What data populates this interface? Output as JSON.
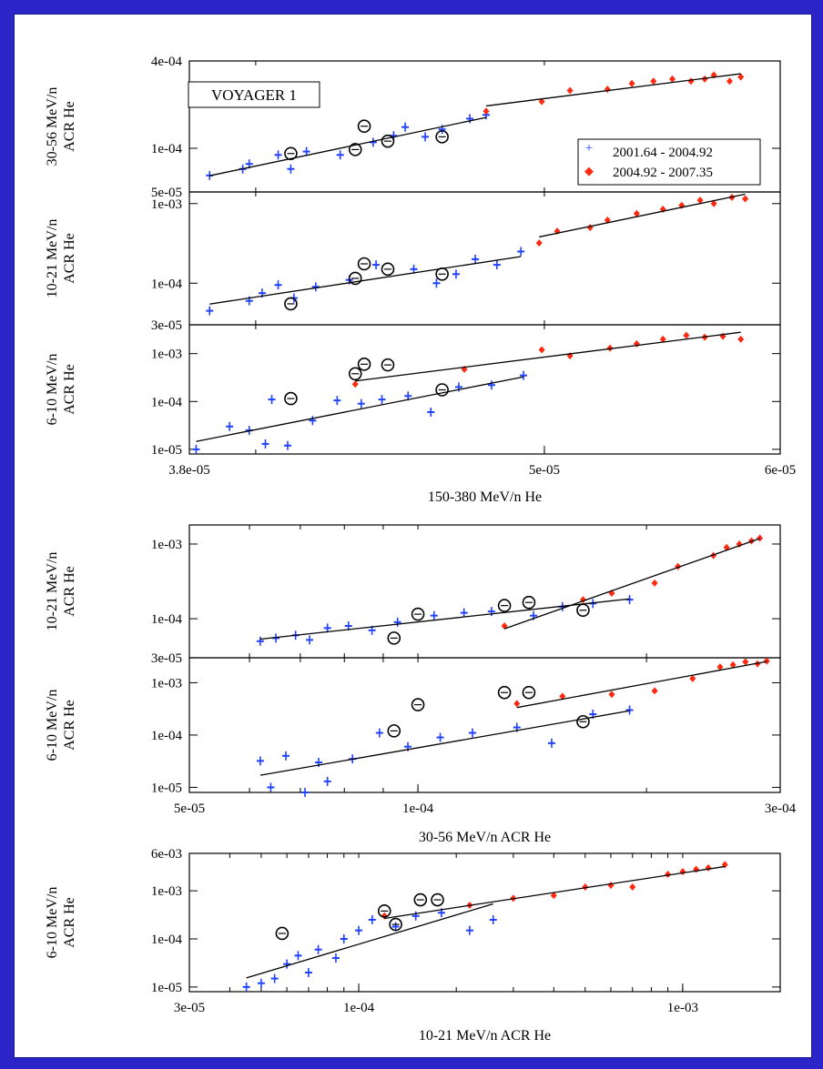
{
  "figure": {
    "label": "VOYAGER 1",
    "legend": [
      {
        "name": "2001.64 - 2004.92",
        "color": "#2040ff",
        "marker": "+"
      },
      {
        "name": "2004.92 - 2007.35",
        "color": "#ff2a10",
        "marker": "◆"
      }
    ],
    "colors": {
      "period1": "#2040ff",
      "period2": "#ff2a10",
      "circle": "#000000",
      "background": "#2b25c8"
    }
  },
  "chart_data": [
    {
      "type": "scatter",
      "xscale": "log",
      "yscale": "log",
      "xlim": [
        3.8e-05,
        6e-05
      ],
      "ylim": [
        5e-05,
        0.0004
      ],
      "xlabel": "",
      "ylabel": "30-56 MeV/n ACR He",
      "yticks": [
        {
          "v": 0.0004,
          "t": "4e-04"
        },
        {
          "v": 0.0001,
          "t": "1e-04"
        },
        {
          "v": 5e-05,
          "t": "5e-05"
        }
      ],
      "series": [
        {
          "name": "2001.64 - 2004.92",
          "color": "#2040ff",
          "x": [
            3.86e-05,
            3.96e-05,
            3.98e-05,
            4.07e-05,
            4.11e-05,
            4.16e-05,
            4.27e-05,
            4.38e-05,
            4.45e-05,
            4.49e-05,
            4.56e-05,
            4.62e-05,
            4.72e-05,
            4.78e-05
          ],
          "y": [
            6.5e-05,
            7.2e-05,
            7.8e-05,
            9e-05,
            7.2e-05,
            9.5e-05,
            9e-05,
            0.00011,
            0.000122,
            0.00014,
            0.00012,
            0.000135,
            0.00016,
            0.00017
          ]
        },
        {
          "name": "2004.92 - 2007.35",
          "color": "#ff2a10",
          "x": [
            4.78e-05,
            4.99e-05,
            5.1e-05,
            5.25e-05,
            5.35e-05,
            5.44e-05,
            5.52e-05,
            5.6e-05,
            5.66e-05,
            5.7e-05,
            5.77e-05,
            5.82e-05
          ],
          "y": [
            0.00018,
            0.00021,
            0.00025,
            0.000255,
            0.00028,
            0.00029,
            0.0003,
            0.00029,
            0.0003,
            0.00032,
            0.00029,
            0.00031
          ]
        },
        {
          "name": "",
          "color": "#000000",
          "x": [
            4.11e-05,
            4.32e-05,
            4.35e-05,
            4.43e-05,
            4.62e-05
          ],
          "y": [
            9.2e-05,
            9.8e-05,
            0.000142,
            0.000112,
            0.00012
          ]
        }
      ]
    },
    {
      "type": "scatter",
      "xscale": "log",
      "yscale": "log",
      "xlim": [
        3.8e-05,
        6e-05
      ],
      "ylim": [
        3e-05,
        0.0014
      ],
      "xlabel": "",
      "ylabel": "10-21 MeV/n ACR He",
      "yticks": [
        {
          "v": 0.001,
          "t": "1e-03"
        },
        {
          "v": 0.0001,
          "t": "1e-04"
        },
        {
          "v": 3e-05,
          "t": "3e-05"
        }
      ],
      "series": [
        {
          "name": "2001.64 - 2004.92",
          "color": "#2040ff",
          "x": [
            3.86e-05,
            3.98e-05,
            4.02e-05,
            4.07e-05,
            4.12e-05,
            4.19e-05,
            4.3e-05,
            4.39e-05,
            4.52e-05,
            4.6e-05,
            4.67e-05,
            4.74e-05,
            4.82e-05,
            4.91e-05
          ],
          "y": [
            4.5e-05,
            6e-05,
            7.5e-05,
            9.5e-05,
            6.5e-05,
            9e-05,
            0.00011,
            0.00017,
            0.00015,
            0.0001,
            0.00013,
            0.0002,
            0.00017,
            0.00025
          ]
        },
        {
          "name": "2004.92 - 2007.35",
          "color": "#ff2a10",
          "x": [
            4.98e-05,
            5.05e-05,
            5.18e-05,
            5.25e-05,
            5.37e-05,
            5.48e-05,
            5.56e-05,
            5.64e-05,
            5.7e-05,
            5.78e-05,
            5.84e-05
          ],
          "y": [
            0.00032,
            0.00045,
            0.0005,
            0.00062,
            0.00075,
            0.00085,
            0.00095,
            0.0011,
            0.001,
            0.0012,
            0.00115
          ]
        },
        {
          "name": "",
          "color": "#000000",
          "x": [
            4.11e-05,
            4.32e-05,
            4.35e-05,
            4.43e-05,
            4.62e-05
          ],
          "y": [
            5.5e-05,
            0.000115,
            0.000175,
            0.00015,
            0.00013
          ]
        }
      ]
    },
    {
      "type": "scatter",
      "xscale": "log",
      "yscale": "log",
      "xlim": [
        3.8e-05,
        6e-05
      ],
      "ylim": [
        8e-06,
        0.004
      ],
      "xlabel": "150-380 MeV/n He",
      "ylabel": "6-10 MeV/n ACR He",
      "xticks": [
        {
          "v": 3.8e-05,
          "t": "3.8e-05"
        },
        {
          "v": 5e-05,
          "t": "5e-05"
        },
        {
          "v": 6e-05,
          "t": "6e-05"
        }
      ],
      "yticks": [
        {
          "v": 0.001,
          "t": "1e-03"
        },
        {
          "v": 0.0001,
          "t": "1e-04"
        },
        {
          "v": 1e-05,
          "t": "1e-05"
        }
      ],
      "series": [
        {
          "name": "2001.64 - 2004.92",
          "color": "#2040ff",
          "x": [
            3.82e-05,
            3.92e-05,
            3.98e-05,
            4.03e-05,
            4.05e-05,
            4.1e-05,
            4.18e-05,
            4.26e-05,
            4.34e-05,
            4.41e-05,
            4.5e-05,
            4.58e-05,
            4.68e-05,
            4.8e-05,
            4.92e-05
          ],
          "y": [
            1e-05,
            3e-05,
            2.5e-05,
            1.3e-05,
            0.00011,
            1.2e-05,
            4e-05,
            0.000105,
            9e-05,
            0.00011,
            0.00013,
            6e-05,
            0.0002,
            0.00022,
            0.00035
          ]
        },
        {
          "name": "2004.92 - 2007.35",
          "color": "#ff2a10",
          "x": [
            4.32e-05,
            4.7e-05,
            4.99e-05,
            5.1e-05,
            5.26e-05,
            5.37e-05,
            5.48e-05,
            5.58e-05,
            5.66e-05,
            5.74e-05,
            5.82e-05
          ],
          "y": [
            0.00023,
            0.00047,
            0.0012,
            0.0009,
            0.0013,
            0.0016,
            0.002,
            0.0024,
            0.0022,
            0.0023,
            0.002
          ]
        },
        {
          "name": "",
          "color": "#000000",
          "x": [
            4.11e-05,
            4.32e-05,
            4.35e-05,
            4.43e-05,
            4.62e-05
          ],
          "y": [
            0.000115,
            0.00038,
            0.0006,
            0.00058,
            0.000175
          ]
        }
      ]
    },
    {
      "type": "scatter",
      "xscale": "log",
      "yscale": "log",
      "xlim": [
        5e-05,
        0.0003
      ],
      "ylim": [
        3e-05,
        0.0018
      ],
      "xlabel": "",
      "ylabel": "10-21 MeV/n ACR He",
      "yticks": [
        {
          "v": 0.001,
          "t": "1e-03"
        },
        {
          "v": 0.0001,
          "t": "1e-04"
        },
        {
          "v": 3e-05,
          "t": "3e-05"
        }
      ],
      "series": [
        {
          "name": "2001.64 - 2004.92",
          "color": "#2040ff",
          "x": [
            6.2e-05,
            6.5e-05,
            6.9e-05,
            7.2e-05,
            7.6e-05,
            8.1e-05,
            8.7e-05,
            9.4e-05,
            0.000105,
            0.000115,
            0.000125,
            0.000142,
            0.000155,
            0.00017,
            0.00019
          ],
          "y": [
            5e-05,
            5.5e-05,
            6e-05,
            5.2e-05,
            7.5e-05,
            8e-05,
            7e-05,
            9e-05,
            0.00011,
            0.00012,
            0.000125,
            0.00011,
            0.000145,
            0.00016,
            0.00018
          ]
        },
        {
          "name": "2004.92 - 2007.35",
          "color": "#ff2a10",
          "x": [
            0.00013,
            0.000165,
            0.00018,
            0.000205,
            0.00022,
            0.000245,
            0.000255,
            0.000265,
            0.000275,
            0.000282
          ],
          "y": [
            8e-05,
            0.00018,
            0.00022,
            0.0003,
            0.0005,
            0.0007,
            0.0009,
            0.001,
            0.0011,
            0.0012
          ]
        },
        {
          "name": "",
          "color": "#000000",
          "x": [
            9.3e-05,
            0.0001,
            0.00013,
            0.00014,
            0.000165
          ],
          "y": [
            5.5e-05,
            0.000115,
            0.00015,
            0.000165,
            0.00013
          ]
        }
      ]
    },
    {
      "type": "scatter",
      "xscale": "log",
      "yscale": "log",
      "xlim": [
        5e-05,
        0.0003
      ],
      "ylim": [
        8e-06,
        0.003
      ],
      "xlabel": "30-56 MeV/n ACR He",
      "ylabel": "6-10 MeV/n ACR He",
      "xticks": [
        {
          "v": 5e-05,
          "t": "5e-05"
        },
        {
          "v": 0.0001,
          "t": "1e-04"
        },
        {
          "v": 0.0003,
          "t": "3e-04"
        }
      ],
      "yticks": [
        {
          "v": 0.001,
          "t": "1e-03"
        },
        {
          "v": 0.0001,
          "t": "1e-04"
        },
        {
          "v": 1e-05,
          "t": "1e-05"
        }
      ],
      "series": [
        {
          "name": "2001.64 - 2004.92",
          "color": "#2040ff",
          "x": [
            6.2e-05,
            6.4e-05,
            6.7e-05,
            7.1e-05,
            7.4e-05,
            7.6e-05,
            8.2e-05,
            8.9e-05,
            9.7e-05,
            0.000107,
            0.000118,
            0.000135,
            0.00015,
            0.00017,
            0.00019
          ],
          "y": [
            3.2e-05,
            1e-05,
            4e-05,
            8e-06,
            3e-05,
            1.3e-05,
            3.5e-05,
            0.00011,
            6e-05,
            9e-05,
            0.00011,
            0.00014,
            7e-05,
            0.00025,
            0.0003
          ]
        },
        {
          "name": "2004.92 - 2007.35",
          "color": "#ff2a10",
          "x": [
            0.000135,
            0.000155,
            0.00018,
            0.000205,
            0.00023,
            0.00025,
            0.00026,
            0.00027,
            0.00028,
            0.000288
          ],
          "y": [
            0.0004,
            0.00055,
            0.0006,
            0.0007,
            0.0012,
            0.002,
            0.0022,
            0.0025,
            0.0023,
            0.0026
          ]
        },
        {
          "name": "",
          "color": "#000000",
          "x": [
            9.3e-05,
            0.0001,
            0.00013,
            0.00014,
            0.000165
          ],
          "y": [
            0.00012,
            0.00038,
            0.00065,
            0.00065,
            0.00018
          ]
        }
      ]
    },
    {
      "type": "scatter",
      "xscale": "log",
      "yscale": "log",
      "xlim": [
        3e-05,
        0.002
      ],
      "ylim": [
        8e-06,
        0.006
      ],
      "xlabel": "10-21 MeV/n ACR He",
      "ylabel": "6-10 MeV/n ACR He",
      "xticks": [
        {
          "v": 3e-05,
          "t": "3e-05"
        },
        {
          "v": 0.0001,
          "t": "1e-04"
        },
        {
          "v": 0.001,
          "t": "1e-03"
        }
      ],
      "yticks": [
        {
          "v": 0.006,
          "t": "6e-03"
        },
        {
          "v": 0.001,
          "t": "1e-03"
        },
        {
          "v": 0.0001,
          "t": "1e-04"
        },
        {
          "v": 1e-05,
          "t": "1e-05"
        }
      ],
      "series": [
        {
          "name": "2001.64 - 2004.92",
          "color": "#2040ff",
          "x": [
            4.5e-05,
            5e-05,
            5.5e-05,
            6e-05,
            6.5e-05,
            7e-05,
            7.5e-05,
            8.5e-05,
            9e-05,
            0.0001,
            0.00011,
            0.00013,
            0.00015,
            0.00018,
            0.00022,
            0.00026
          ],
          "y": [
            1e-05,
            1.2e-05,
            1.5e-05,
            3e-05,
            4.5e-05,
            2e-05,
            6e-05,
            4e-05,
            0.0001,
            0.00015,
            0.00025,
            0.00018,
            0.0003,
            0.00035,
            0.00015,
            0.00025
          ]
        },
        {
          "name": "2004.92 - 2007.35",
          "color": "#ff2a10",
          "x": [
            0.00012,
            0.00022,
            0.0003,
            0.0004,
            0.0005,
            0.0006,
            0.0007,
            0.0009,
            0.001,
            0.0011,
            0.0012,
            0.00135
          ],
          "y": [
            0.0003,
            0.0005,
            0.0007,
            0.0008,
            0.0012,
            0.0013,
            0.0012,
            0.0022,
            0.0025,
            0.0028,
            0.003,
            0.0035
          ]
        },
        {
          "name": "",
          "color": "#000000",
          "x": [
            5.8e-05,
            0.00012,
            0.00013,
            0.000155,
            0.000175
          ],
          "y": [
            0.00013,
            0.00038,
            0.0002,
            0.00065,
            0.00065
          ]
        }
      ]
    }
  ]
}
